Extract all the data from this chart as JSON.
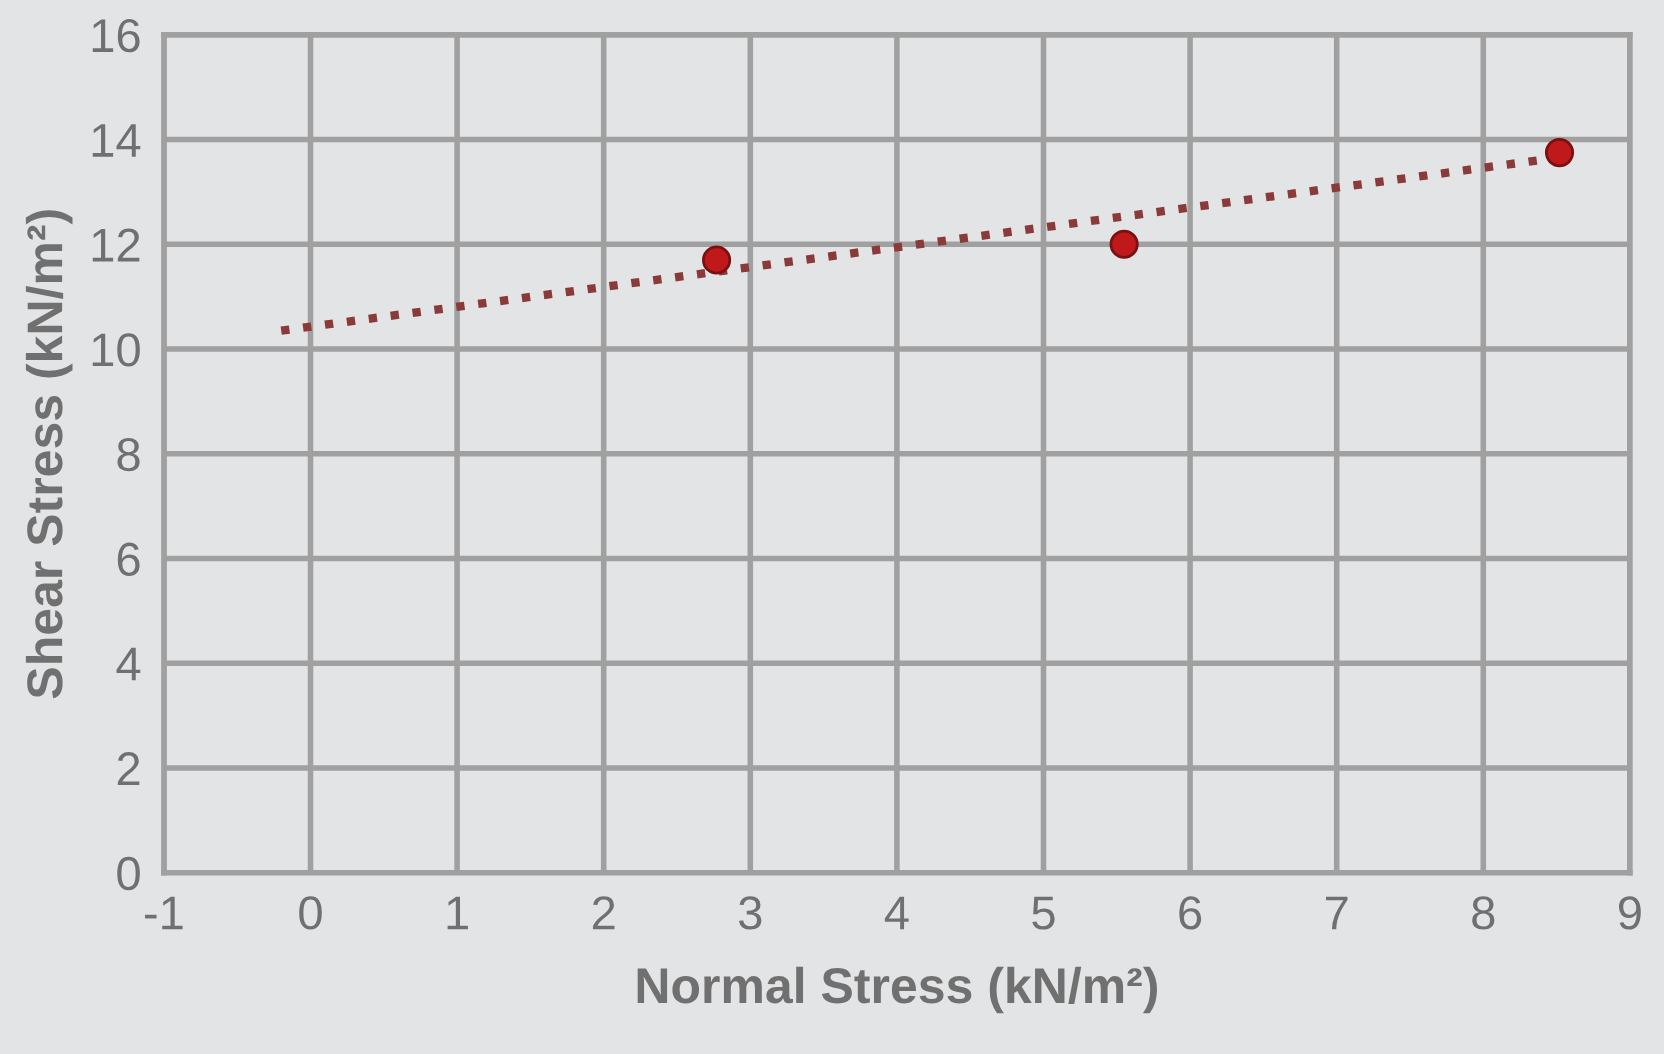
{
  "chart_data": {
    "type": "scatter",
    "xlabel": "Normal Stress (kN/m²)",
    "ylabel": "Shear Stress (kN/m²)",
    "xlim": [
      -1,
      9
    ],
    "xticks": [
      -1,
      0,
      1,
      2,
      3,
      4,
      5,
      6,
      7,
      8,
      9
    ],
    "ylim": [
      0,
      16
    ],
    "yticks": [
      0,
      2,
      4,
      6,
      8,
      10,
      12,
      14,
      16
    ],
    "grid": true,
    "series": [
      {
        "color": "#c0191c",
        "x": [
          2.77,
          5.55,
          8.52
        ],
        "values": [
          11.7,
          12.0,
          13.75
        ],
        "marker": "circle"
      },
      {
        "type": "line",
        "color": "#8b3a3a",
        "x": [
          -0.2,
          8.5
        ],
        "values": [
          10.35,
          13.65
        ],
        "line_style": "dotted",
        "marker": "none"
      }
    ]
  }
}
